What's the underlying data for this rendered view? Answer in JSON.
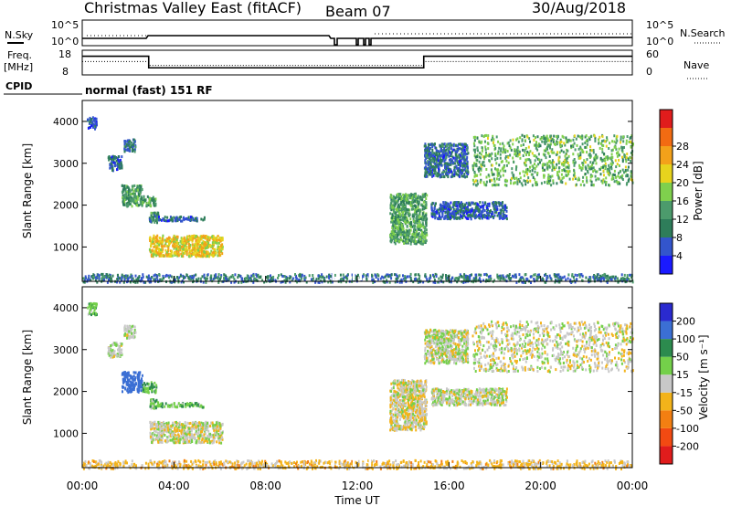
{
  "header": {
    "station": "Christmas Valley East (fitACF)",
    "beam": "Beam 07",
    "date": "30/Aug/2018"
  },
  "noise_panel": {
    "left_label": "N.Sky",
    "left_ticks": [
      "10^5",
      "10^0"
    ],
    "right_label": "N.Search",
    "right_ticks": [
      "10^5",
      "10^0"
    ]
  },
  "freq_panel": {
    "left_label_1": "Freq.",
    "left_label_2": "[MHz]",
    "left_ticks": [
      "18",
      "8"
    ],
    "right_label": "Nave",
    "right_ticks": [
      "60",
      "0"
    ]
  },
  "cpid": {
    "label": "CPID",
    "value": "normal (fast) 151 RF"
  },
  "power_panel": {
    "ylabel": "Slant Range [km]",
    "yticks": [
      "1000",
      "2000",
      "3000",
      "4000"
    ],
    "colorbar_label": "Power [dB]",
    "colorbar_ticks": [
      "4",
      "8",
      "12",
      "16",
      "20",
      "24",
      "28"
    ],
    "colors": [
      "#1a1aff",
      "#3355cc",
      "#2e7d5a",
      "#4c9b6c",
      "#7fd04d",
      "#e7d31d",
      "#f3a11a",
      "#f26b12",
      "#e01c1c"
    ]
  },
  "velocity_panel": {
    "ylabel": "Slant Range [km]",
    "yticks": [
      "1000",
      "2000",
      "3000",
      "4000"
    ],
    "colorbar_label": "Velocity [m s⁻¹]",
    "colorbar_ticks": [
      "200",
      "100",
      "50",
      "15",
      "-15",
      "-50",
      "-100",
      "-200"
    ],
    "colors": [
      "#2a2acf",
      "#3b6fd4",
      "#2c8b4e",
      "#74d04a",
      "#c8c8c8",
      "#f3b31a",
      "#f37f12",
      "#f24a12",
      "#e01c1c"
    ]
  },
  "xaxis": {
    "label": "Time UT",
    "ticks": [
      "00:00",
      "04:00",
      "08:00",
      "12:00",
      "16:00",
      "20:00",
      "00:00"
    ]
  },
  "chart_data": {
    "type": "heatmap",
    "x_range_hours": [
      0,
      24
    ],
    "y_range_km": [
      180,
      4500
    ],
    "regions": [
      {
        "t0": 0.2,
        "t1": 0.6,
        "r0": 3850,
        "r1": 4150,
        "power": 6,
        "velocity": 40
      },
      {
        "t0": 1.1,
        "t1": 1.7,
        "r0": 2850,
        "r1": 3200,
        "power": 7,
        "velocity": 10
      },
      {
        "t0": 1.8,
        "t1": 2.3,
        "r0": 3300,
        "r1": 3600,
        "power": 9,
        "velocity": 10
      },
      {
        "t0": 1.7,
        "t1": 2.6,
        "r0": 2000,
        "r1": 2500,
        "power": 13,
        "velocity": 150
      },
      {
        "t0": 2.6,
        "t1": 3.2,
        "r0": 2000,
        "r1": 2250,
        "power": 14,
        "velocity": 60
      },
      {
        "t0": 2.9,
        "t1": 3.3,
        "r0": 1600,
        "r1": 1850,
        "power": 12,
        "velocity": 40
      },
      {
        "t0": 3.3,
        "t1": 5.3,
        "r0": 1650,
        "r1": 1750,
        "power": 7,
        "velocity": 40
      },
      {
        "t0": 2.9,
        "t1": 6.1,
        "r0": 800,
        "r1": 1300,
        "power": 23,
        "velocity": 0
      },
      {
        "t0": 0.0,
        "t1": 24.0,
        "r0": 180,
        "r1": 380,
        "power": 9,
        "velocity": -25
      },
      {
        "t0": 13.4,
        "t1": 15.0,
        "r0": 1100,
        "r1": 2300,
        "power": 14,
        "velocity": -5
      },
      {
        "t0": 14.9,
        "t1": 16.8,
        "r0": 2700,
        "r1": 3500,
        "power": 8,
        "velocity": 5
      },
      {
        "t0": 15.2,
        "t1": 18.5,
        "r0": 1700,
        "r1": 2100,
        "power": 7,
        "velocity": 5
      },
      {
        "t0": 17.0,
        "t1": 24.0,
        "r0": 2500,
        "r1": 3700,
        "power": 16,
        "velocity": 0
      }
    ],
    "data_gaps_hours": [
      [
        10.9,
        11.0
      ],
      [
        11.8,
        11.9
      ],
      [
        12.1,
        12.2
      ],
      [
        12.5,
        12.6
      ]
    ],
    "frequency": {
      "segments": [
        {
          "t0": 0.0,
          "t1": 2.9,
          "value_mhz": 16
        },
        {
          "t0": 2.9,
          "t1": 14.9,
          "value_mhz": 10.5
        },
        {
          "t0": 14.9,
          "t1": 24.0,
          "value_mhz": 16
        }
      ]
    },
    "nave": {
      "segments": [
        {
          "t0": 0.0,
          "t1": 2.9,
          "value": 33
        },
        {
          "t0": 2.9,
          "t1": 14.9,
          "value": 22
        },
        {
          "t0": 14.9,
          "t1": 24.0,
          "value": 33
        }
      ]
    }
  }
}
